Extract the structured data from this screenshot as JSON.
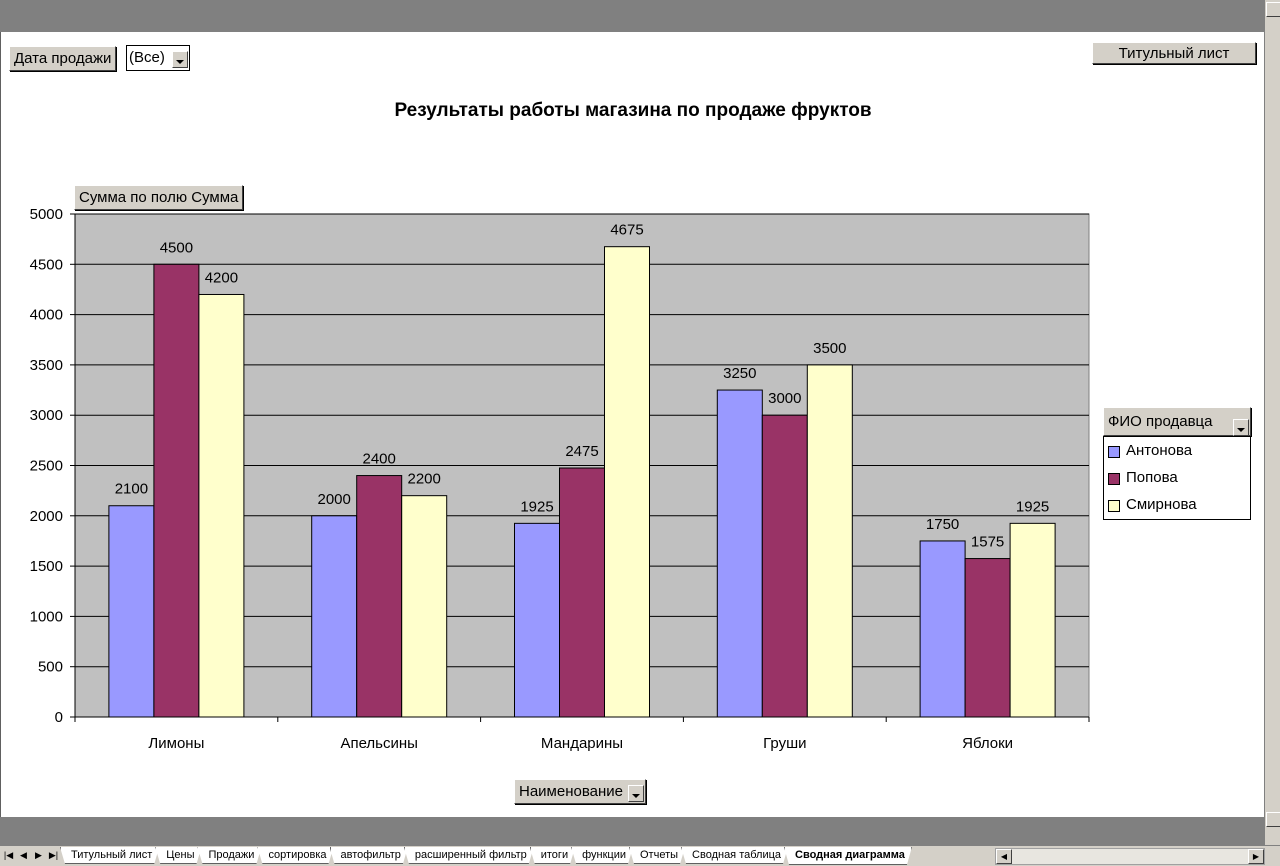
{
  "page_filter": {
    "field": "Дата продажи",
    "value": "(Все)"
  },
  "title_sheet_button": "Титульный лист",
  "data_field_button": "Сумма по полю Сумма",
  "category_field_button": "Наименование",
  "series_field_button": "ФИО продавца",
  "colors": {
    "Антонова": "#9999ff",
    "Попова": "#993366",
    "Смирнова": "#ffffcc",
    "plot_bg": "#c0c0c0"
  },
  "chart_data": {
    "type": "bar",
    "title": "Результаты работы магазина по продаже фруктов",
    "categories": [
      "Лимоны",
      "Апельсины",
      "Мандарины",
      "Груши",
      "Яблоки"
    ],
    "series": [
      {
        "name": "Антонова",
        "values": [
          2100,
          2000,
          1925,
          3250,
          1750
        ]
      },
      {
        "name": "Попова",
        "values": [
          4500,
          2400,
          2475,
          3000,
          1575
        ]
      },
      {
        "name": "Смирнова",
        "values": [
          4200,
          2200,
          4675,
          3500,
          1925
        ]
      }
    ],
    "ylim": [
      0,
      5000
    ],
    "yticks": [
      0,
      500,
      1000,
      1500,
      2000,
      2500,
      3000,
      3500,
      4000,
      4500,
      5000
    ],
    "grid": true,
    "data_labels": true,
    "legend": "right"
  },
  "sheet_tabs": [
    "Титульный лист",
    "Цены",
    "Продажи",
    "сортировка",
    "автофильтр",
    "расширенный фильтр",
    "итоги",
    "функции",
    "Отчеты",
    "Сводная таблица",
    "Сводная диаграмма"
  ],
  "active_tab": "Сводная диаграмма"
}
